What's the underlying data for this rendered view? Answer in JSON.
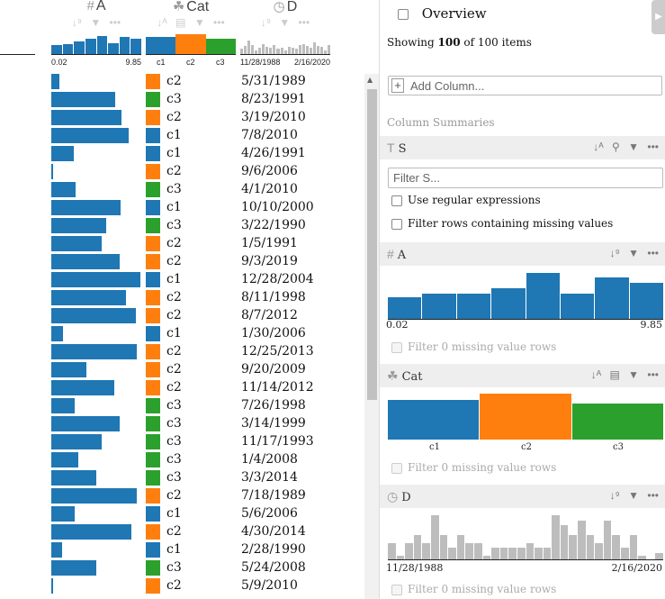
{
  "table": {
    "columns": [
      {
        "type_icon": "#",
        "label": "A",
        "tools": [
          "sort-number-icon",
          "filter-icon",
          "more-icon"
        ],
        "min": "0.02",
        "max": "9.85"
      },
      {
        "type_icon": "cat",
        "label": "Cat",
        "tools": [
          "sort-alpha-icon",
          "group-icon",
          "filter-icon",
          "more-icon"
        ],
        "categories": [
          "c1",
          "c2",
          "c3"
        ]
      },
      {
        "type_icon": "clock",
        "label": "D",
        "tools": [
          "sort-number-icon",
          "filter-icon",
          "more-icon"
        ],
        "min": "11/28/1988",
        "max": "2/16/2020"
      }
    ],
    "header_hist_a": [
      0.45,
      0.5,
      0.62,
      0.78,
      0.9,
      0.55,
      0.85,
      0.75
    ],
    "header_hist_d": [
      0.25,
      0.4,
      0.7,
      0.45,
      0.2,
      0.3,
      0.5,
      0.35,
      0.3,
      0.45,
      0.25,
      0.3,
      0.2,
      0.35,
      0.3,
      0.25,
      0.45,
      0.5,
      0.4,
      0.3,
      0.6,
      0.4,
      0.35,
      0.2,
      0.45
    ],
    "rows": [
      {
        "a": 0.09,
        "cat": "c2",
        "d": "5/31/1989"
      },
      {
        "a": 0.71,
        "cat": "c3",
        "d": "8/23/1991"
      },
      {
        "a": 0.78,
        "cat": "c2",
        "d": "3/19/2010"
      },
      {
        "a": 0.86,
        "cat": "c1",
        "d": "7/8/2010"
      },
      {
        "a": 0.25,
        "cat": "c1",
        "d": "4/26/1991"
      },
      {
        "a": 0.02,
        "cat": "c2",
        "d": "9/6/2006"
      },
      {
        "a": 0.27,
        "cat": "c3",
        "d": "4/1/2010"
      },
      {
        "a": 0.77,
        "cat": "c1",
        "d": "10/10/2000"
      },
      {
        "a": 0.61,
        "cat": "c3",
        "d": "3/22/1990"
      },
      {
        "a": 0.56,
        "cat": "c2",
        "d": "1/5/1991"
      },
      {
        "a": 0.76,
        "cat": "c2",
        "d": "9/3/2019"
      },
      {
        "a": 0.99,
        "cat": "c1",
        "d": "12/28/2004"
      },
      {
        "a": 0.83,
        "cat": "c2",
        "d": "8/11/1998"
      },
      {
        "a": 0.94,
        "cat": "c2",
        "d": "8/7/2012"
      },
      {
        "a": 0.13,
        "cat": "c1",
        "d": "1/30/2006"
      },
      {
        "a": 0.95,
        "cat": "c2",
        "d": "12/25/2013"
      },
      {
        "a": 0.39,
        "cat": "c2",
        "d": "9/20/2009"
      },
      {
        "a": 0.7,
        "cat": "c2",
        "d": "11/14/2012"
      },
      {
        "a": 0.26,
        "cat": "c3",
        "d": "7/26/1998"
      },
      {
        "a": 0.76,
        "cat": "c3",
        "d": "3/14/1999"
      },
      {
        "a": 0.56,
        "cat": "c3",
        "d": "11/17/1993"
      },
      {
        "a": 0.3,
        "cat": "c3",
        "d": "1/4/2008"
      },
      {
        "a": 0.5,
        "cat": "c3",
        "d": "3/3/2014"
      },
      {
        "a": 0.95,
        "cat": "c2",
        "d": "7/18/1989"
      },
      {
        "a": 0.26,
        "cat": "c1",
        "d": "5/6/2006"
      },
      {
        "a": 0.89,
        "cat": "c2",
        "d": "4/30/2014"
      },
      {
        "a": 0.12,
        "cat": "c1",
        "d": "2/28/1990"
      },
      {
        "a": 0.5,
        "cat": "c3",
        "d": "5/24/2008"
      },
      {
        "a": 0.01,
        "cat": "c2",
        "d": "5/9/2010"
      }
    ]
  },
  "colors": {
    "c1": "#1f77b4",
    "c2": "#ff7f0e",
    "c3": "#2ca02c",
    "numeric": "#1f77b4",
    "date": "#bdbdbd"
  },
  "panel": {
    "overview_label": "Overview",
    "showing_prefix": "Showing ",
    "showing_count": "100",
    "showing_mid": " of ",
    "showing_total": "100",
    "showing_suffix": " items",
    "add_column_placeholder": "Add Column...",
    "section_label": "Column Summaries",
    "s": {
      "name": "S",
      "filter_placeholder": "Filter S...",
      "opt_regex": "Use regular expressions",
      "opt_missing": "Filter rows containing missing values"
    },
    "a": {
      "name": "A",
      "min": "0.02",
      "max": "9.85",
      "missing": "Filter 0 missing value rows",
      "hist": [
        0.48,
        0.55,
        0.55,
        0.68,
        1.0,
        0.55,
        0.9,
        0.78
      ]
    },
    "cat": {
      "name": "Cat",
      "labels": [
        "c1",
        "c2",
        "c3"
      ],
      "heights": [
        0.86,
        1.0,
        0.78
      ],
      "missing": "Filter 0 missing value rows"
    },
    "d": {
      "name": "D",
      "min": "11/28/1988",
      "max": "2/16/2020",
      "missing": "Filter 0 missing value rows",
      "hist": [
        0.38,
        0.1,
        0.38,
        0.55,
        0.38,
        1.0,
        0.55,
        0.28,
        0.55,
        0.38,
        0.38,
        0.1,
        0.28,
        0.28,
        0.28,
        0.28,
        0.38,
        0.28,
        0.28,
        1.0,
        0.78,
        0.55,
        0.88,
        0.55,
        0.38,
        0.88,
        0.55,
        0.28,
        0.55,
        0.1,
        0.02,
        0.15
      ]
    }
  }
}
